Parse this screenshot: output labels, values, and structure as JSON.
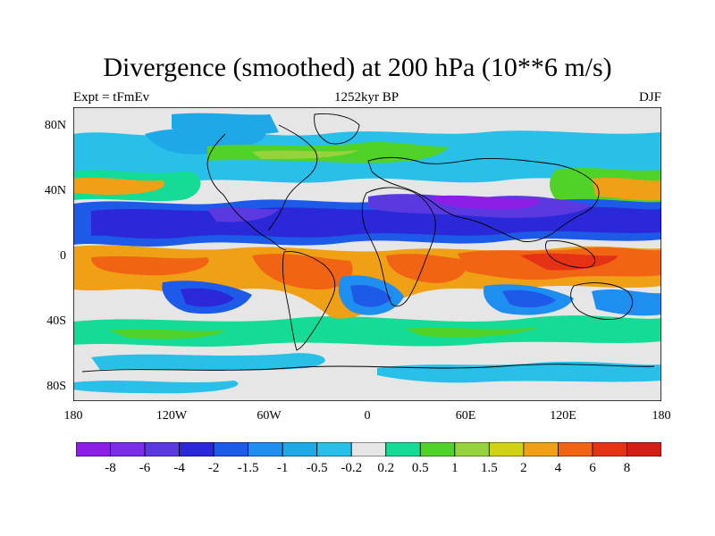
{
  "chart_data": {
    "type": "heatmap",
    "title": "Divergence (smoothed) at 200 hPa (10**6 m/s)",
    "subtitle_left": "Expt = tFmEv",
    "subtitle_center": "1252kyr BP",
    "subtitle_right": "DJF",
    "x_ticks": [
      "180",
      "120W",
      "60W",
      "0",
      "60E",
      "120E",
      "180"
    ],
    "y_ticks": [
      "80N",
      "40N",
      "0",
      "40S",
      "80S"
    ],
    "xlim": [
      -180,
      180
    ],
    "ylim": [
      -90,
      90
    ],
    "colorbar_levels": [
      "-8",
      "-6",
      "-4",
      "-2",
      "-1.5",
      "-1",
      "-0.5",
      "-0.2",
      "0.2",
      "0.5",
      "1",
      "1.5",
      "2",
      "4",
      "6",
      "8"
    ],
    "colorbar_colors": [
      "#8c1ee6",
      "#7a2ee8",
      "#5a3ae0",
      "#2a28d8",
      "#1e5ae8",
      "#1e8ef0",
      "#1ea8e8",
      "#28c0e8",
      "#e6e6e6",
      "#14dc96",
      "#50d228",
      "#96d23c",
      "#d2d214",
      "#f0a014",
      "#f06414",
      "#e63214",
      "#d21e14"
    ]
  }
}
